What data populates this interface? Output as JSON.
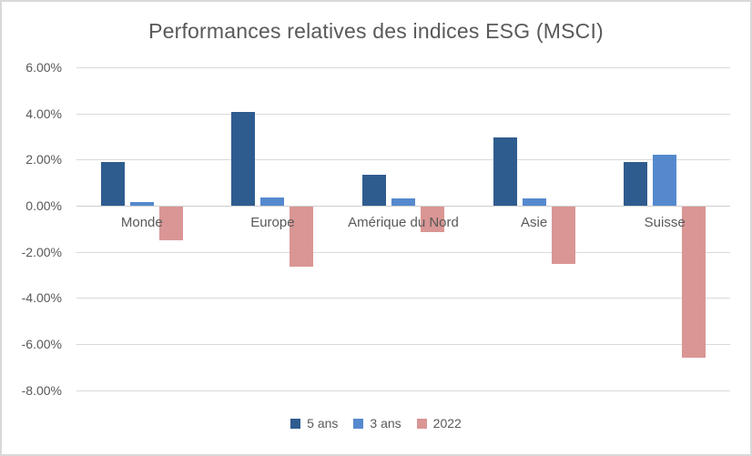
{
  "window": {
    "background_color": "#FFFFFF",
    "border_color": "#D9D9D9",
    "text_color": "#595959",
    "gridline_color": "#D9D9D9"
  },
  "chart_data": {
    "type": "bar",
    "title": "Performances relatives des indices ESG (MSCI)",
    "xlabel": "",
    "ylabel": "",
    "categories": [
      "Monde",
      "Europe",
      "Amérique du Nord",
      "Asie",
      "Suisse"
    ],
    "series": [
      {
        "name": "5 ans",
        "color": "#2F5C8F",
        "values": [
          1.9,
          4.05,
          1.35,
          2.95,
          1.9
        ]
      },
      {
        "name": "3 ans",
        "color": "#5589CE",
        "values": [
          0.15,
          0.35,
          0.3,
          0.3,
          2.2
        ]
      },
      {
        "name": "2022",
        "color": "#D99694",
        "values": [
          -1.45,
          -2.6,
          -1.1,
          -2.5,
          -6.55
        ]
      }
    ],
    "yticks": [
      {
        "value": 6,
        "label": "6.00%"
      },
      {
        "value": 4,
        "label": "4.00%"
      },
      {
        "value": 2,
        "label": "2.00%"
      },
      {
        "value": 0,
        "label": "0.00%"
      },
      {
        "value": -2,
        "label": "-2.00%"
      },
      {
        "value": -4,
        "label": "-4.00%"
      },
      {
        "value": -6,
        "label": "-6.00%"
      },
      {
        "value": -8,
        "label": "-8.00%"
      }
    ],
    "ylim": [
      -8,
      6
    ],
    "grid": true,
    "legend_position": "bottom"
  }
}
